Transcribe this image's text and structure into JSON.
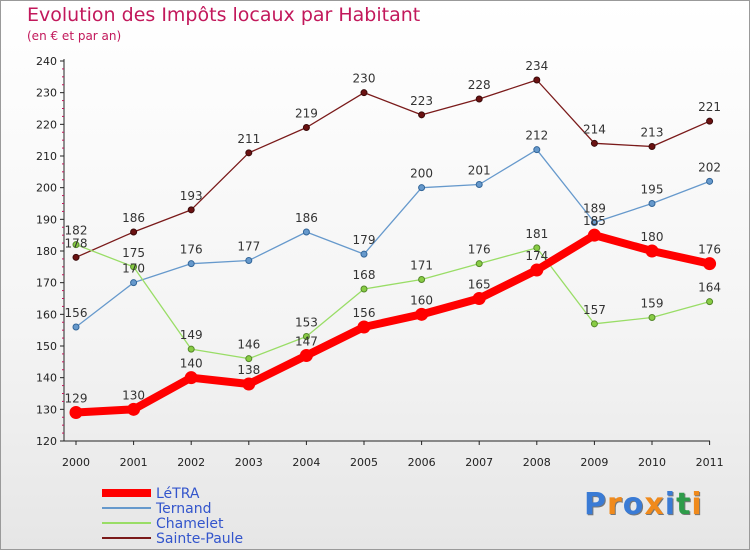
{
  "title": "Evolution des Impôts locaux par Habitant",
  "subtitle": "(en € et par an)",
  "logo": {
    "text": "Proxiti",
    "colors": [
      "#3a7bd5",
      "#f08a1c",
      "#3a7bd5",
      "#f08a1c",
      "#3a7bd5",
      "#2e9c4a",
      "#f08a1c"
    ]
  },
  "chart_data": {
    "type": "line",
    "title": "Evolution des Impôts locaux par Habitant",
    "subtitle": "(en € et par an)",
    "xlabel": "",
    "ylabel": "",
    "x": [
      "2000",
      "2001",
      "2002",
      "2003",
      "2004",
      "2005",
      "2006",
      "2007",
      "2008",
      "2009",
      "2010",
      "2011"
    ],
    "ylim": [
      120,
      240
    ],
    "yticks": [
      120,
      130,
      140,
      150,
      160,
      170,
      180,
      190,
      200,
      210,
      220,
      230,
      240
    ],
    "grid": false,
    "legend_position": "bottom-left",
    "series": [
      {
        "name": "LéTRA",
        "color": "#ff0000",
        "values": [
          129,
          130,
          140,
          138,
          147,
          156,
          160,
          165,
          174,
          185,
          180,
          176
        ]
      },
      {
        "name": "Ternand",
        "color": "#6699cc",
        "values": [
          156,
          170,
          176,
          177,
          186,
          179,
          200,
          201,
          212,
          189,
          195,
          202
        ]
      },
      {
        "name": "Chamelet",
        "color": "#99dd66",
        "values": [
          182,
          175,
          149,
          146,
          153,
          168,
          171,
          176,
          181,
          157,
          159,
          164
        ]
      },
      {
        "name": "Sainte-Paule",
        "color": "#7a1a1a",
        "values": [
          178,
          186,
          193,
          211,
          219,
          230,
          223,
          228,
          234,
          214,
          213,
          221
        ]
      }
    ]
  }
}
